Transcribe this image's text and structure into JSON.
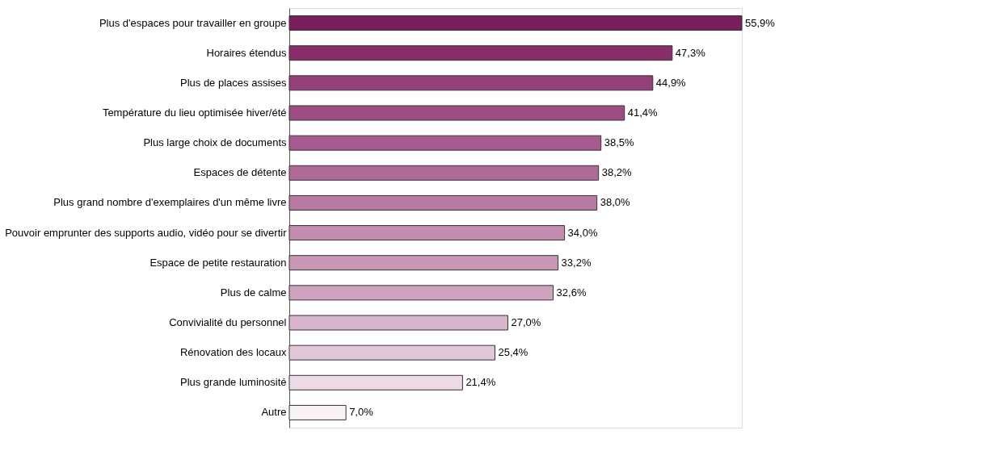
{
  "chart_data": {
    "type": "bar",
    "orientation": "horizontal",
    "categories": [
      "Plus d'espaces pour travailler en groupe",
      "Horaires étendus",
      "Plus de places assises",
      "Température du lieu optimisée hiver/été",
      "Plus large choix de documents",
      "Espaces de détente",
      "Plus grand nombre d'exemplaires d'un même livre",
      "Pouvoir emprunter des supports audio, vidéo pour se divertir",
      "Espace de petite restauration",
      "Plus de calme",
      "Convivialité du personnel",
      "Rénovation des locaux",
      "Plus grande luminosité",
      "Autre"
    ],
    "values": [
      55.9,
      47.3,
      44.9,
      41.4,
      38.5,
      38.2,
      38.0,
      34.0,
      33.2,
      32.6,
      27.0,
      25.4,
      21.4,
      7.0
    ],
    "value_labels": [
      "55,9%",
      "47,3%",
      "44,9%",
      "41,4%",
      "38,5%",
      "38,2%",
      "38,0%",
      "34,0%",
      "33,2%",
      "32,6%",
      "27,0%",
      "25,4%",
      "21,4%",
      "7,0%"
    ],
    "colors": [
      "#7a1f5c",
      "#8a2e6a",
      "#94407a",
      "#9c4d84",
      "#a65a8e",
      "#b06a98",
      "#b87aa2",
      "#c28cae",
      "#c897b6",
      "#cfa2bf",
      "#d8b5cd",
      "#e2c7da",
      "#ecdae6",
      "#f8f2f6"
    ],
    "grid": false
  }
}
